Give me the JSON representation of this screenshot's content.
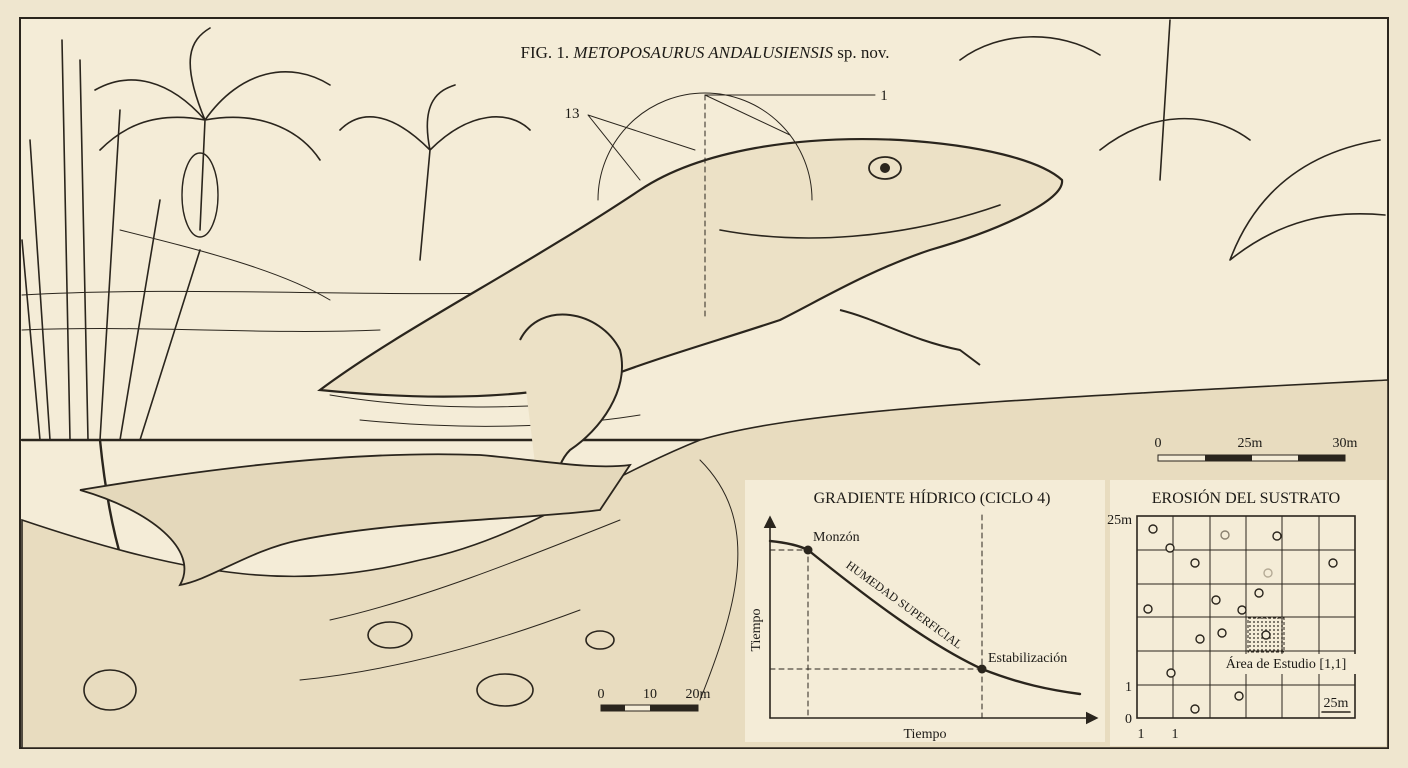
{
  "figure": {
    "title_prefix": "FIG. 1.",
    "title_species": "METOPOSAURUS ANDALUSIENSIS",
    "title_suffix": "sp. nov.",
    "callouts": [
      "13",
      "1"
    ]
  },
  "scale_bar_top": {
    "labels": [
      "0",
      "25m",
      "30m"
    ]
  },
  "scale_bar_bottom": {
    "labels": [
      "0",
      "10",
      "20m"
    ]
  },
  "gradient_chart": {
    "title": "GRADIENTE HÍDRICO (CICLO 4)",
    "y_label": "Tiempo",
    "x_label": "Tiempo",
    "curve_label": "HUMEDAD SUPERFICIAL",
    "points": [
      "Monzón",
      "Estabilización"
    ]
  },
  "erosion_chart": {
    "title": "EROSIÓN DEL SUSTRATO",
    "y_labels": [
      "25m",
      "1",
      "0"
    ],
    "x_labels": [
      "1",
      "1",
      "25m"
    ],
    "study_area": "Área de Estudio [1,1]"
  }
}
